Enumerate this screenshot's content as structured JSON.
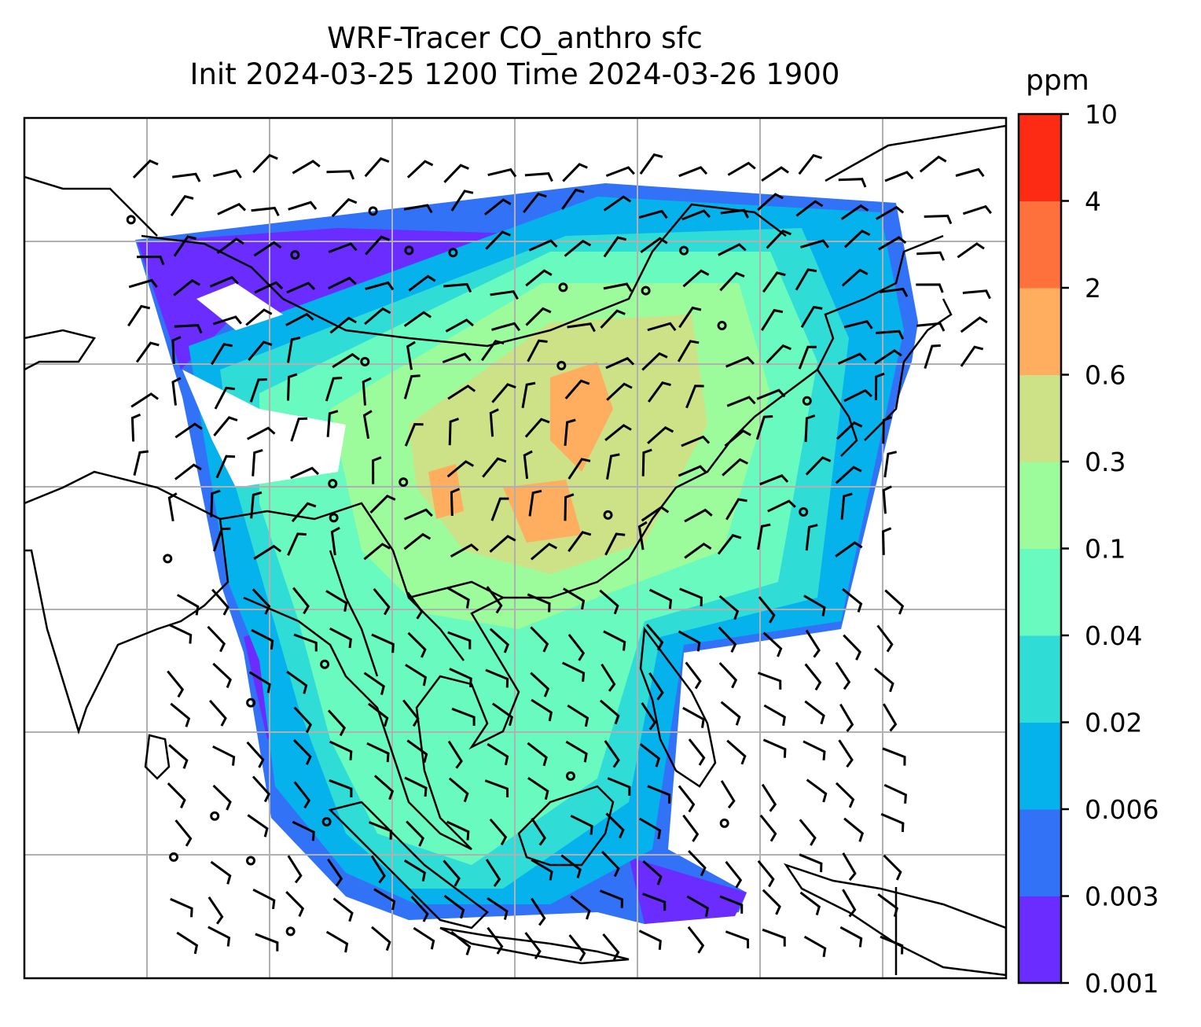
{
  "title_line1": "WRF-Tracer CO_anthro sfc",
  "title_line2": "Init 2024-03-25 1200 Time 2024-03-26 1900",
  "colorbar": {
    "unit": "ppm",
    "levels": [
      "0.001",
      "0.003",
      "0.006",
      "0.02",
      "0.04",
      "0.1",
      "0.3",
      "0.6",
      "2",
      "4",
      "10"
    ],
    "colors": [
      "#6a2cff",
      "#3272f7",
      "#06b2ec",
      "#2fdcd6",
      "#69fac0",
      "#9cfb9a",
      "#cde287",
      "#feae5e",
      "#fe703c",
      "#fe2b14"
    ]
  },
  "map": {
    "field": "CO_anthro",
    "level": "sfc",
    "overlays": [
      "coastlines",
      "country-borders",
      "gridlines",
      "wind-barbs"
    ]
  }
}
